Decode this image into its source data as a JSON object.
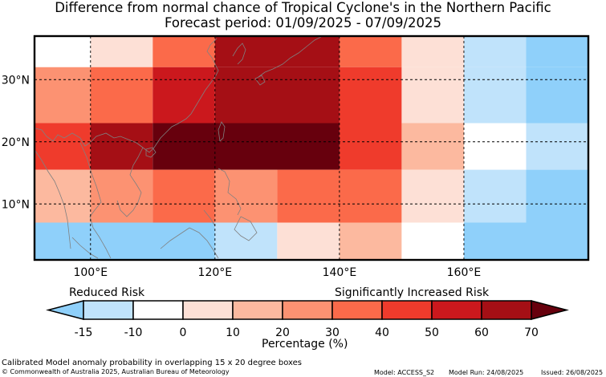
{
  "title": {
    "line1": "Difference from normal chance of Tropical Cyclone's in the Northern Pacific",
    "line2": "Forecast period: 01/09/2025 - 07/09/2025"
  },
  "map": {
    "lat_labels": [
      "30°N",
      "20°N",
      "10°N"
    ],
    "lon_labels": [
      "100°E",
      "120°E",
      "140°E",
      "160°E"
    ],
    "lat_values": [
      30,
      20,
      10
    ],
    "lon_values": [
      100,
      120,
      140,
      160
    ],
    "extent": {
      "lon_min": 91,
      "lon_max": 180,
      "lat_min": 1,
      "lat_max": 37
    },
    "graticule_style": "dashed",
    "coastline_color": "#808080",
    "cells": [
      {
        "lon0": 91,
        "lon1": 100,
        "lat0": 32,
        "lat1": 37,
        "class": "-10"
      },
      {
        "lon0": 100,
        "lon1": 110,
        "lat0": 32,
        "lat1": 37,
        "class": "0"
      },
      {
        "lon0": 110,
        "lon1": 120,
        "lat0": 32,
        "lat1": 37,
        "class": "30"
      },
      {
        "lon0": 120,
        "lon1": 140,
        "lat0": 32,
        "lat1": 37,
        "class": "60"
      },
      {
        "lon0": 140,
        "lon1": 150,
        "lat0": 32,
        "lat1": 37,
        "class": "30"
      },
      {
        "lon0": 150,
        "lon1": 160,
        "lat0": 32,
        "lat1": 37,
        "class": "0"
      },
      {
        "lon0": 160,
        "lon1": 170,
        "lat0": 32,
        "lat1": 37,
        "class": "-15"
      },
      {
        "lon0": 170,
        "lon1": 180,
        "lat0": 32,
        "lat1": 37,
        "class": "-15b"
      },
      {
        "lon0": 91,
        "lon1": 100,
        "lat0": 23,
        "lat1": 32,
        "class": "20"
      },
      {
        "lon0": 100,
        "lon1": 110,
        "lat0": 23,
        "lat1": 32,
        "class": "30"
      },
      {
        "lon0": 110,
        "lon1": 120,
        "lat0": 23,
        "lat1": 32,
        "class": "50"
      },
      {
        "lon0": 120,
        "lon1": 140,
        "lat0": 23,
        "lat1": 32,
        "class": "60"
      },
      {
        "lon0": 140,
        "lon1": 150,
        "lat0": 23,
        "lat1": 32,
        "class": "40"
      },
      {
        "lon0": 150,
        "lon1": 160,
        "lat0": 23,
        "lat1": 32,
        "class": "0"
      },
      {
        "lon0": 160,
        "lon1": 170,
        "lat0": 23,
        "lat1": 32,
        "class": "-15"
      },
      {
        "lon0": 170,
        "lon1": 180,
        "lat0": 23,
        "lat1": 32,
        "class": "-15b"
      },
      {
        "lon0": 91,
        "lon1": 100,
        "lat0": 15.5,
        "lat1": 23,
        "class": "40"
      },
      {
        "lon0": 100,
        "lon1": 110,
        "lat0": 15.5,
        "lat1": 23,
        "class": "60"
      },
      {
        "lon0": 110,
        "lon1": 140,
        "lat0": 15.5,
        "lat1": 23,
        "class": "70"
      },
      {
        "lon0": 140,
        "lon1": 150,
        "lat0": 15.5,
        "lat1": 23,
        "class": "40"
      },
      {
        "lon0": 150,
        "lon1": 160,
        "lat0": 15.5,
        "lat1": 23,
        "class": "10"
      },
      {
        "lon0": 160,
        "lon1": 170,
        "lat0": 15.5,
        "lat1": 23,
        "class": "-10"
      },
      {
        "lon0": 170,
        "lon1": 180,
        "lat0": 15.5,
        "lat1": 23,
        "class": "-15"
      },
      {
        "lon0": 91,
        "lon1": 100,
        "lat0": 7,
        "lat1": 15.5,
        "class": "10"
      },
      {
        "lon0": 100,
        "lon1": 110,
        "lat0": 7,
        "lat1": 15.5,
        "class": "20"
      },
      {
        "lon0": 110,
        "lon1": 120,
        "lat0": 7,
        "lat1": 15.5,
        "class": "30"
      },
      {
        "lon0": 120,
        "lon1": 130,
        "lat0": 7,
        "lat1": 15.5,
        "class": "20"
      },
      {
        "lon0": 130,
        "lon1": 150,
        "lat0": 7,
        "lat1": 15.5,
        "class": "30"
      },
      {
        "lon0": 150,
        "lon1": 160,
        "lat0": 7,
        "lat1": 15.5,
        "class": "0"
      },
      {
        "lon0": 160,
        "lon1": 170,
        "lat0": 7,
        "lat1": 15.5,
        "class": "-15"
      },
      {
        "lon0": 170,
        "lon1": 180,
        "lat0": 7,
        "lat1": 15.5,
        "class": "-15b"
      },
      {
        "lon0": 91,
        "lon1": 120,
        "lat0": 1,
        "lat1": 7,
        "class": "-15b"
      },
      {
        "lon0": 120,
        "lon1": 130,
        "lat0": 1,
        "lat1": 7,
        "class": "-15"
      },
      {
        "lon0": 130,
        "lon1": 140,
        "lat0": 1,
        "lat1": 7,
        "class": "0"
      },
      {
        "lon0": 140,
        "lon1": 150,
        "lat0": 1,
        "lat1": 7,
        "class": "10"
      },
      {
        "lon0": 150,
        "lon1": 160,
        "lat0": 1,
        "lat1": 7,
        "class": "-10"
      },
      {
        "lon0": 160,
        "lon1": 180,
        "lat0": 1,
        "lat1": 7,
        "class": "-15b"
      }
    ]
  },
  "legend": {
    "reduced_label": "Reduced Risk",
    "increased_label": "Significantly Increased Risk",
    "axis_label": "Percentage (%)",
    "tick_labels": [
      "-15",
      "-10",
      "0",
      "10",
      "20",
      "30",
      "40",
      "50",
      "60",
      "70"
    ],
    "colors": {
      "-15b": "#8fd0fa",
      "-15": "#c0e3fb",
      "-10": "#ffffff",
      "0": "#fde0d6",
      "10": "#fcb99f",
      "20": "#fc9272",
      "30": "#fb6a4a",
      "40": "#ef3b2c",
      "50": "#cb181d",
      "60": "#a50f15",
      "70": "#67000d"
    },
    "bins": [
      "-15",
      "-10",
      "0",
      "10",
      "20",
      "30",
      "40",
      "50",
      "60"
    ]
  },
  "footer": {
    "description": "Calibrated Model anomaly probability in overlapping 15 x 20 degree boxes",
    "copyright": "© Commonwealth of Australia 2025, Australian Bureau of Meteorology",
    "model": "Model: ACCESS_S2",
    "model_run": "Model Run: 24/08/2025",
    "issued": "Issued: 26/08/2025"
  }
}
